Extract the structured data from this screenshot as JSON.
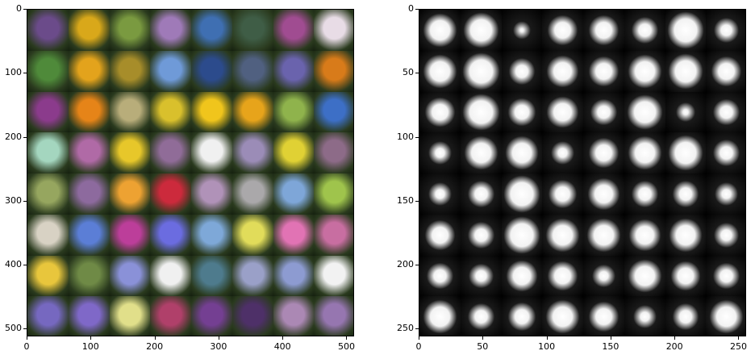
{
  "left_panel": {
    "grid": {
      "rows": 8,
      "cols": 8
    },
    "x_ticks": [
      "0",
      "100",
      "200",
      "300",
      "400",
      "500"
    ],
    "y_ticks": [
      "0",
      "100",
      "200",
      "300",
      "400",
      "500"
    ],
    "colors": [
      "#6b4b8a",
      "#d9a81a",
      "#7a9a40",
      "#9f7ab8",
      "#3f6fb2",
      "#3f5d46",
      "#a04c91",
      "#e8dce6",
      "#4f8a3a",
      "#e3a31c",
      "#a78d2a",
      "#6f9ad8",
      "#2c4b8c",
      "#506080",
      "#6a63ad",
      "#d87b1a",
      "#8b3b8c",
      "#e68418",
      "#b8ad7a",
      "#d9c02c",
      "#f0c51c",
      "#e7a41b",
      "#8fb34c",
      "#3d6fc6",
      "#a4d6bf",
      "#b06aa6",
      "#e7c72a",
      "#906c98",
      "#f0f0f0",
      "#9b8cb7",
      "#e0d134",
      "#8d6b88",
      "#96a65f",
      "#8d6a9e",
      "#eda232",
      "#cc2a3c",
      "#b092b8",
      "#aaa8aa",
      "#7ea6d8",
      "#9fc44c",
      "#d8d2c4",
      "#5b7ed6",
      "#bc3e9a",
      "#6b6ce0",
      "#7ea8d8",
      "#e1dc5a",
      "#e173b4",
      "#c86ea1",
      "#e8c63c",
      "#6f8a46",
      "#8a91d8",
      "#f0f0f0",
      "#4e7b8d",
      "#9aa0c8",
      "#8d9bd1",
      "#f2f2f2",
      "#7668c0",
      "#7f68c8",
      "#e1df8a",
      "#b0406a",
      "#743f92",
      "#4e3068",
      "#ab88b4",
      "#9676b0"
    ]
  },
  "right_panel": {
    "grid": {
      "rows": 8,
      "cols": 8
    },
    "x_ticks": [
      "0",
      "50",
      "100",
      "150",
      "200",
      "250"
    ],
    "y_ticks": [
      "0",
      "50",
      "100",
      "150",
      "200",
      "250"
    ],
    "blobs": [
      0.8,
      0.85,
      0.35,
      0.7,
      0.7,
      0.6,
      0.9,
      0.55,
      0.8,
      0.9,
      0.6,
      0.75,
      0.7,
      0.8,
      0.85,
      0.7,
      0.7,
      0.9,
      0.65,
      0.75,
      0.6,
      0.85,
      0.4,
      0.6,
      0.5,
      0.8,
      0.8,
      0.5,
      0.7,
      0.8,
      0.85,
      0.6,
      0.5,
      0.6,
      0.9,
      0.65,
      0.75,
      0.6,
      0.6,
      0.5,
      0.7,
      0.6,
      0.9,
      0.8,
      0.8,
      0.75,
      0.8,
      0.55,
      0.6,
      0.55,
      0.75,
      0.7,
      0.5,
      0.8,
      0.7,
      0.6,
      0.8,
      0.6,
      0.65,
      0.8,
      0.7,
      0.5,
      0.6,
      0.8
    ]
  }
}
